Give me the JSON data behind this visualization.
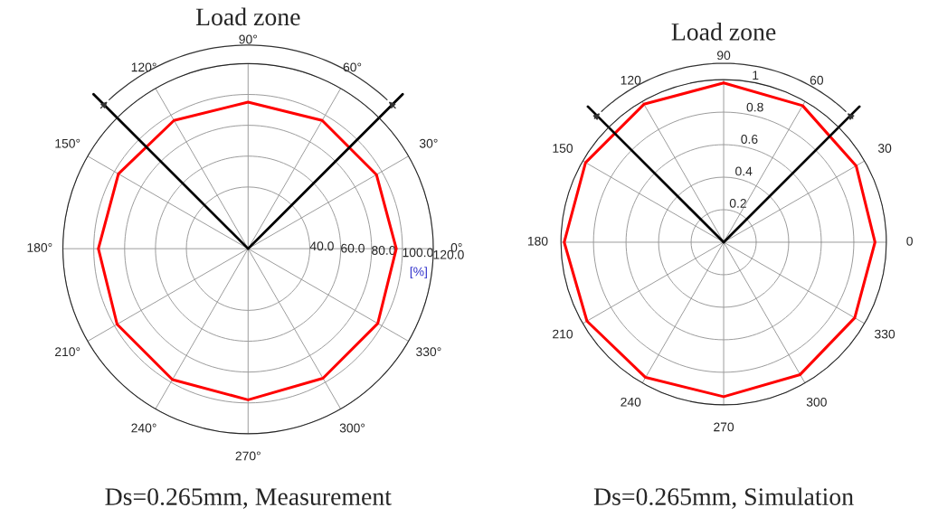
{
  "chart_data": [
    {
      "type": "radar",
      "title": "Ds=0.265mm, Measurement",
      "ylabel": "[%]",
      "annotations": [
        "Load zone"
      ],
      "categories": [
        "90°",
        "60°",
        "30°",
        "0°",
        "330°",
        "300°",
        "270°",
        "240°",
        "210°",
        "180°",
        "150°",
        "120°"
      ],
      "series": [
        {
          "color": "#ff0000",
          "values": [
            95,
            96,
            96,
            96,
            97,
            97,
            98,
            98,
            98,
            97,
            97,
            96
          ]
        }
      ],
      "ylim": [
        0,
        120
      ],
      "yticks": [
        {
          "value": 40,
          "label": "40.0"
        },
        {
          "value": 60,
          "label": "60.0"
        },
        {
          "value": 80,
          "label": "80.0"
        },
        {
          "value": 100,
          "label": "100.0"
        },
        {
          "value": 120,
          "label": "120.0"
        }
      ],
      "grid": true,
      "line_style": "solid",
      "marker": "none"
    },
    {
      "type": "radar",
      "title": "Ds=0.265mm, Simulation",
      "annotations": [
        "Load zone"
      ],
      "categories": [
        "90",
        "60",
        "30",
        "0",
        "330",
        "300",
        "270",
        "240",
        "210",
        "180",
        "150",
        "120"
      ],
      "series": [
        {
          "color": "#ff0000",
          "values": [
            0.98,
            0.97,
            0.94,
            0.93,
            0.93,
            0.94,
            0.95,
            0.96,
            0.97,
            0.98,
            0.98,
            0.98
          ]
        }
      ],
      "ylim": [
        0,
        1
      ],
      "yticks": [
        0.2,
        0.4,
        0.6,
        0.8,
        1
      ],
      "grid": true,
      "line_style": "solid",
      "marker": "none"
    }
  ]
}
